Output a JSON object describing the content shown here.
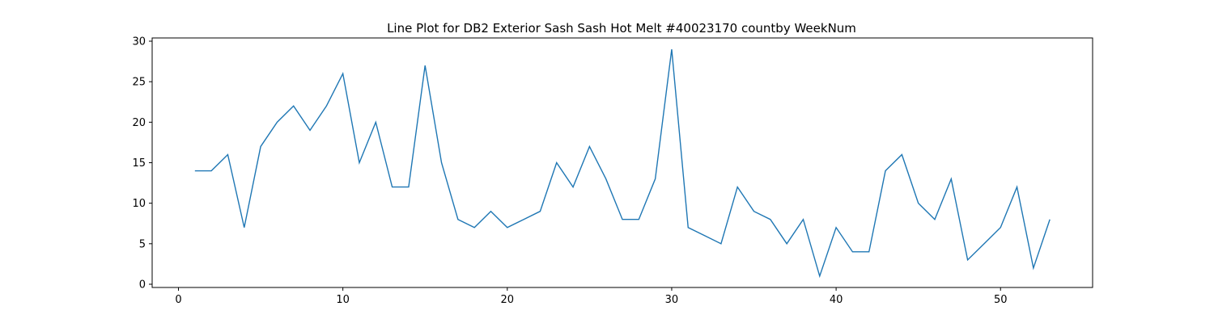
{
  "chart_data": {
    "type": "line",
    "title": "Line Plot for DB2 Exterior Sash Sash Hot Melt #40023170 countby WeekNum",
    "xlabel": "",
    "ylabel": "",
    "xlim": [
      -1.6,
      55.6
    ],
    "ylim": [
      -0.4,
      30.4
    ],
    "x_ticks": [
      0,
      10,
      20,
      30,
      40,
      50
    ],
    "y_ticks": [
      0,
      5,
      10,
      15,
      20,
      25,
      30
    ],
    "grid": false,
    "line_color": "#1f77b4",
    "x": [
      1,
      2,
      3,
      4,
      5,
      6,
      7,
      8,
      9,
      10,
      11,
      12,
      13,
      14,
      15,
      16,
      17,
      18,
      19,
      20,
      21,
      22,
      23,
      24,
      25,
      26,
      27,
      28,
      29,
      30,
      31,
      32,
      33,
      34,
      35,
      36,
      37,
      38,
      39,
      40,
      41,
      42,
      43,
      44,
      45,
      46,
      47,
      48,
      49,
      50,
      51,
      52,
      53
    ],
    "values": [
      14,
      14,
      16,
      7,
      17,
      20,
      22,
      19,
      22,
      26,
      15,
      20,
      12,
      12,
      27,
      15,
      8,
      7,
      9,
      7,
      8,
      9,
      15,
      12,
      17,
      13,
      8,
      8,
      13,
      29,
      7,
      6,
      5,
      12,
      9,
      8,
      5,
      8,
      1,
      7,
      4,
      4,
      14,
      16,
      10,
      8,
      13,
      3,
      5,
      7,
      12,
      2,
      8
    ]
  }
}
